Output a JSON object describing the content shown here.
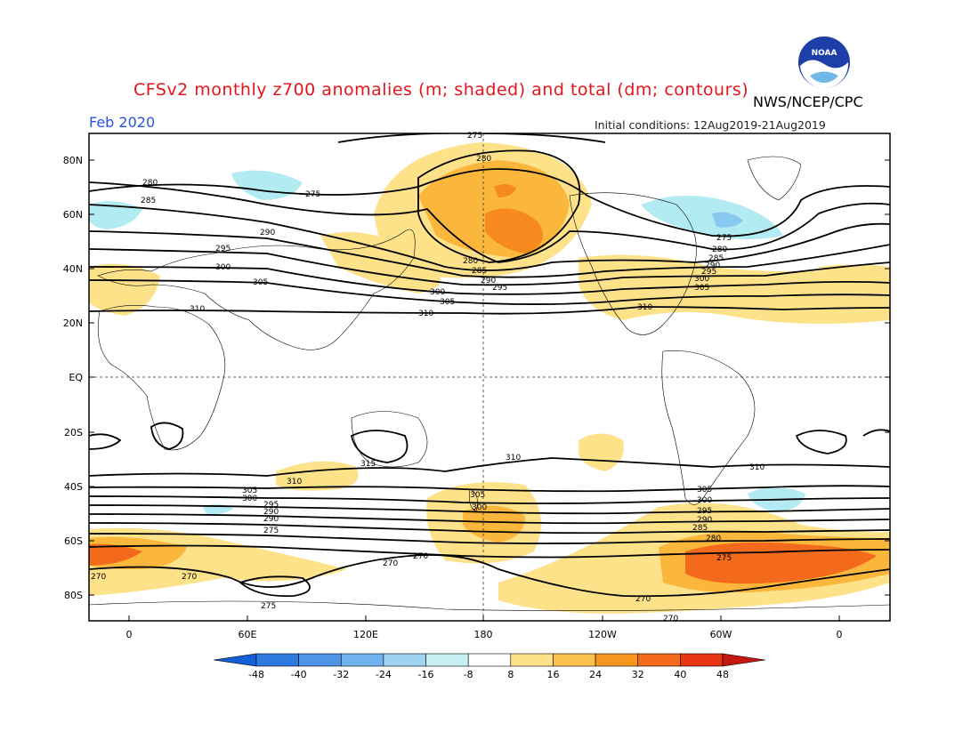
{
  "title": "CFSv2 monthly z700 anomalies (m; shaded) and total (dm; contours)",
  "agency": "NWS/NCEP/CPC",
  "month_label": "Feb 2020",
  "initial_conditions": "Initial conditions: 12Aug2019-21Aug2019",
  "logo_text": "NOAA",
  "colors": {
    "pos_light": "#fde28a",
    "pos_mid": "#fbb73c",
    "pos_strong": "#f78a1e",
    "pos_max": "#ef3b10",
    "neg_light": "#b3ebf2",
    "neg_mid": "#88c9ef"
  },
  "lat_ticks": [
    "80N",
    "60N",
    "40N",
    "20N",
    "EQ",
    "20S",
    "40S",
    "60S",
    "80S"
  ],
  "lon_ticks": [
    "0",
    "60E",
    "120E",
    "180",
    "120W",
    "60W",
    "0"
  ],
  "colorbar": {
    "labels": [
      "-48",
      "-40",
      "-32",
      "-24",
      "-16",
      "-8",
      "8",
      "16",
      "24",
      "32",
      "40",
      "48"
    ],
    "colors": [
      "#1560d8",
      "#2e7ae0",
      "#4e95e6",
      "#70b3ee",
      "#9fd3f2",
      "#c8f0f5",
      "#ffffff",
      "#fde28a",
      "#fbc14e",
      "#f8961e",
      "#f36a1c",
      "#ea3513",
      "#c2180d"
    ]
  },
  "contour_labels": [
    "275",
    "280",
    "285",
    "290",
    "295",
    "300",
    "305",
    "310",
    "315",
    "270"
  ]
}
